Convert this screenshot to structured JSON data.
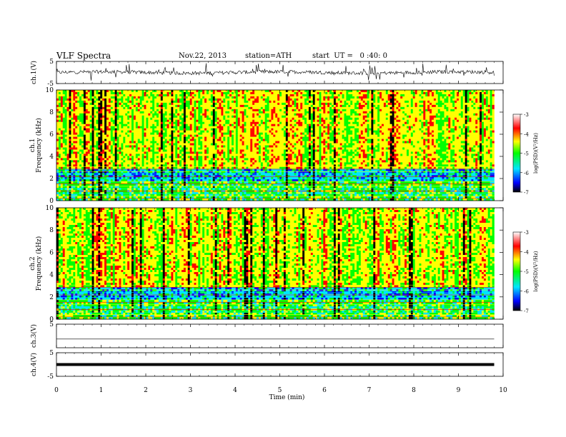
{
  "header": {
    "title": "VLF Spectra",
    "date": "Nov.22, 2013",
    "station": "station=ATH",
    "start": "start  UT =   0 :40: 0"
  },
  "chart_data": [
    {
      "type": "line",
      "panel": "ch1-waveform",
      "ylabel": "ch.1(V)",
      "ylim": [
        -5,
        5
      ],
      "yticks": [
        "5",
        "-5"
      ],
      "xlim": [
        0,
        10
      ],
      "note_values": "noisy waveform roughly within -2..+2 V with spikes",
      "x": [
        0,
        1,
        2,
        3,
        4,
        5,
        6,
        7,
        8,
        9,
        9.8
      ],
      "y": [
        0.2,
        0.1,
        0.3,
        -0.1,
        0.2,
        0.0,
        0.1,
        0.2,
        -0.1,
        0.1,
        0.0
      ]
    },
    {
      "type": "heatmap",
      "panel": "ch1-spectrogram",
      "ylabel": "ch.1\nFrequency (kHz)",
      "ylabel_lines": [
        "ch.1",
        "Frequency (kHz)"
      ],
      "ylim": [
        0,
        10
      ],
      "yticks": [
        "0",
        "2",
        "4",
        "6",
        "8",
        "10"
      ],
      "xlim": [
        0,
        10
      ],
      "data_end_min": 9.8,
      "colorbar": {
        "label": "log(PSD)(V²/Hz)",
        "range": [
          -7,
          -3
        ],
        "ticks": [
          "-3",
          "-4",
          "-5",
          "-6",
          "-7"
        ]
      }
    },
    {
      "type": "heatmap",
      "panel": "ch2-spectrogram",
      "ylabel_lines": [
        "ch.2",
        "Frequency (kHz)"
      ],
      "ylim": [
        0,
        10
      ],
      "yticks": [
        "0",
        "2",
        "4",
        "6",
        "8",
        "10"
      ],
      "xlim": [
        0,
        10
      ],
      "data_end_min": 9.8,
      "colorbar": {
        "label": "log(PSD)(V²/Hz)",
        "range": [
          -7,
          -3
        ],
        "ticks": [
          "-3",
          "-4",
          "-5",
          "-6",
          "-7"
        ]
      }
    },
    {
      "type": "line",
      "panel": "ch3-waveform",
      "ylabel": "ch.3(V)",
      "ylim": [
        -5,
        5
      ],
      "yticks": [
        "5"
      ],
      "xlim": [
        0,
        10
      ],
      "x": [
        0,
        9.8
      ],
      "y": [
        0,
        0
      ]
    },
    {
      "type": "line",
      "panel": "ch4-waveform",
      "ylabel": "ch.4(V)",
      "ylim": [
        -5,
        5
      ],
      "yticks": [
        "5",
        "-5"
      ],
      "xlim": [
        0,
        10
      ],
      "x": [
        0,
        9.8
      ],
      "y": [
        0,
        0
      ]
    }
  ],
  "xaxis": {
    "label": "Time (min)",
    "ticks": [
      "0",
      "1",
      "2",
      "3",
      "4",
      "5",
      "6",
      "7",
      "8",
      "9",
      "10"
    ]
  },
  "colors": {
    "colormap": [
      "#000000",
      "#0000ff",
      "#00e5ff",
      "#00ff00",
      "#ffff00",
      "#ff0000",
      "#ffffff"
    ],
    "text": "#000000"
  }
}
